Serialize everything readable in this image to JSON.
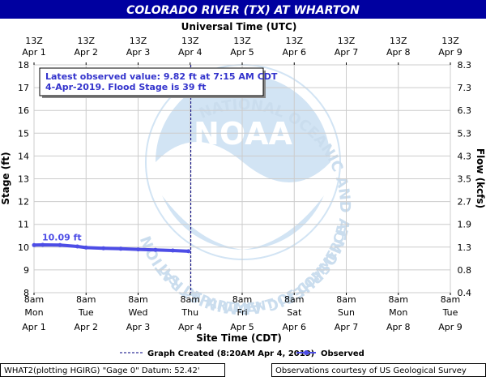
{
  "chart_data": {
    "type": "line",
    "title": "COLORADO RIVER (TX) AT WHARTON",
    "top_axis_label": "Universal Time (UTC)",
    "top_ticks": [
      {
        "l1": "13Z",
        "l2": "Apr 1"
      },
      {
        "l1": "13Z",
        "l2": "Apr 2"
      },
      {
        "l1": "13Z",
        "l2": "Apr 3"
      },
      {
        "l1": "13Z",
        "l2": "Apr 4"
      },
      {
        "l1": "13Z",
        "l2": "Apr 5"
      },
      {
        "l1": "13Z",
        "l2": "Apr 6"
      },
      {
        "l1": "13Z",
        "l2": "Apr 7"
      },
      {
        "l1": "13Z",
        "l2": "Apr 8"
      },
      {
        "l1": "13Z",
        "l2": "Apr 9"
      }
    ],
    "bottom_ticks": [
      {
        "l1": "8am",
        "l2": "Mon",
        "l3": "Apr 1"
      },
      {
        "l1": "8am",
        "l2": "Tue",
        "l3": "Apr 2"
      },
      {
        "l1": "8am",
        "l2": "Wed",
        "l3": "Apr 3"
      },
      {
        "l1": "8am",
        "l2": "Thu",
        "l3": "Apr 4"
      },
      {
        "l1": "8am",
        "l2": "Fri",
        "l3": "Apr 5"
      },
      {
        "l1": "8am",
        "l2": "Sat",
        "l3": "Apr 6"
      },
      {
        "l1": "8am",
        "l2": "Sun",
        "l3": "Apr 7"
      },
      {
        "l1": "8am",
        "l2": "Mon",
        "l3": "Apr 8"
      },
      {
        "l1": "8am",
        "l2": "Tue",
        "l3": "Apr 9"
      }
    ],
    "xlabel": "Site Time (CDT)",
    "ylabel_left": "Stage (ft)",
    "ylabel_right": "Flow (kcfs)",
    "ylim": [
      8,
      18
    ],
    "left_ticks": [
      "8",
      "9",
      "10",
      "11",
      "12",
      "13",
      "14",
      "15",
      "16",
      "17",
      "18"
    ],
    "right_ticks": [
      {
        "stage": 8,
        "label": "0.4"
      },
      {
        "stage": 9,
        "label": "0.8"
      },
      {
        "stage": 10,
        "label": "1.3"
      },
      {
        "stage": 11,
        "label": "1.9"
      },
      {
        "stage": 12,
        "label": "2.7"
      },
      {
        "stage": 13,
        "label": "3.5"
      },
      {
        "stage": 14,
        "label": "4.3"
      },
      {
        "stage": 15,
        "label": "5.3"
      },
      {
        "stage": 16,
        "label": "6.3"
      },
      {
        "stage": 17,
        "label": "7.3"
      },
      {
        "stage": 18,
        "label": "8.3"
      }
    ],
    "grid": true,
    "series": [
      {
        "name": "Observed",
        "color": "#4d4de6",
        "x": [
          "Apr 1 08:00",
          "Apr 1 12:00",
          "Apr 1 20:00",
          "Apr 2 04:00",
          "Apr 2 08:00",
          "Apr 2 16:00",
          "Apr 3 00:00",
          "Apr 3 08:00",
          "Apr 3 16:00",
          "Apr 4 00:00",
          "Apr 4 07:15"
        ],
        "y": [
          10.09,
          10.1,
          10.09,
          10.03,
          9.98,
          9.95,
          9.93,
          9.9,
          9.88,
          9.85,
          9.82
        ]
      }
    ],
    "annotations": {
      "first_value_label": "10.09 ft",
      "latest_line1": "Latest observed value: 9.82 ft at 7:15 AM CDT",
      "latest_line2": "4-Apr-2019.  Flood Stage is 39 ft"
    },
    "legend": {
      "placement": "bottom",
      "created_label": "Graph Created (8:20AM Apr 4, 2019)",
      "observed_label": "Observed"
    }
  },
  "footer": {
    "left": "WHAT2(plotting HGIRG) \"Gage 0\" Datum:  52.42'",
    "right": "Observations courtesy of US Geological Survey"
  },
  "watermark": {
    "logo_text": "NOAA",
    "ring_text": "NATIONAL OCEANIC AND ATMOSPHERIC ADMINISTRATION",
    "ring_bottom": "U.S. DEPARTMENT OF COMMERCE"
  },
  "colors": {
    "title_bg": "#0000a0",
    "plot_bg": "#ffffff",
    "grid": "#cccccc",
    "series": "#4d4de6",
    "annotation_text": "#3333cc"
  }
}
